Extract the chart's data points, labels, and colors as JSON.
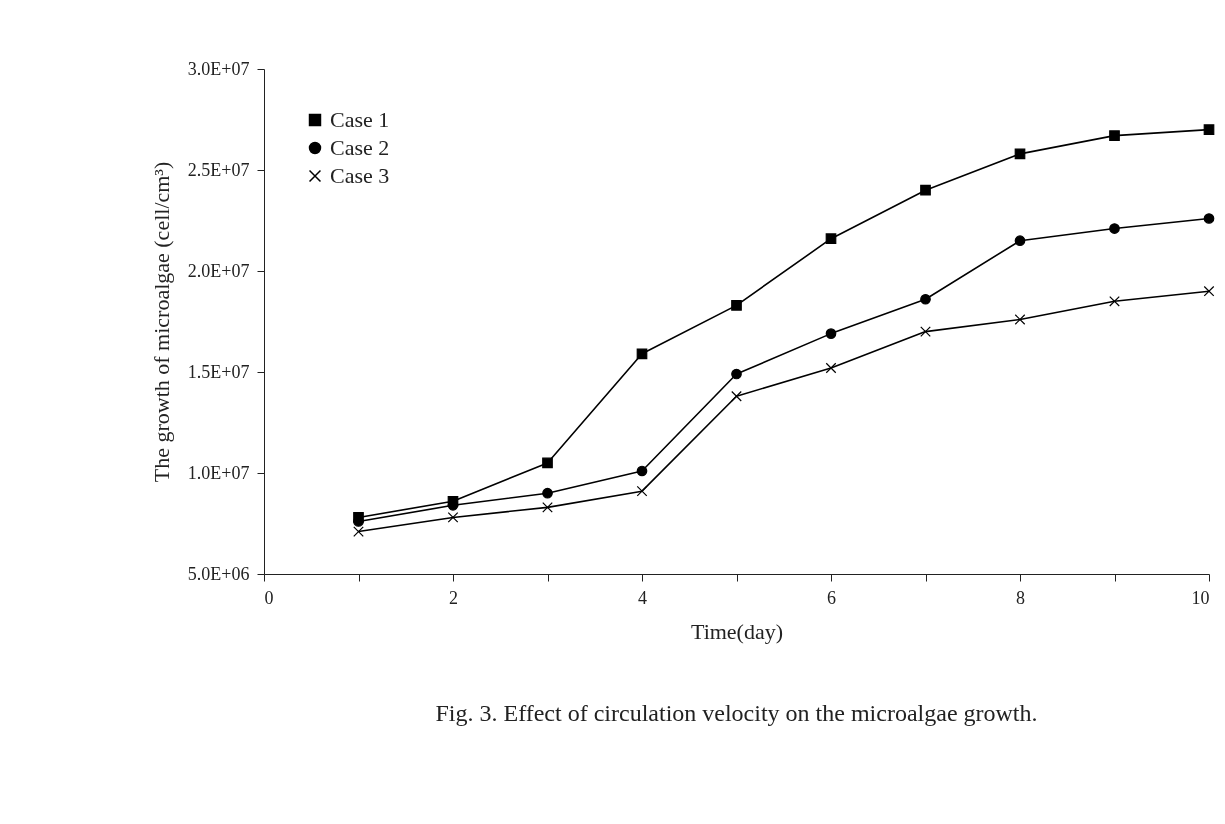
{
  "chart_data": {
    "type": "line",
    "xlabel": "Time(day)",
    "ylabel": "The growth of microalgae (cell/cm³)",
    "x": [
      1,
      2,
      3,
      4,
      5,
      6,
      7,
      8,
      9,
      10
    ],
    "series": [
      {
        "name": "Case 1",
        "color": "#000000",
        "marker": "square",
        "values": [
          7800000,
          8600000,
          10500000,
          15900000,
          18300000,
          21600000,
          24000000,
          25800000,
          26700000,
          27000000
        ]
      },
      {
        "name": "Case 2",
        "color": "#000000",
        "marker": "circle",
        "values": [
          7600000,
          8400000,
          9000000,
          10100000,
          14900000,
          16900000,
          18600000,
          21500000,
          22100000,
          22600000
        ]
      },
      {
        "name": "Case 3",
        "color": "#000000",
        "marker": "cross",
        "values": [
          7100000,
          7800000,
          8300000,
          9100000,
          13800000,
          15200000,
          17000000,
          17600000,
          18500000,
          19000000
        ]
      }
    ],
    "xlim": [
      0,
      10
    ],
    "xticks": [
      0,
      {
        "value": 1,
        "label": null
      },
      2,
      {
        "value": 3,
        "label": null
      },
      4,
      {
        "value": 5,
        "label": null
      },
      6,
      {
        "value": 7,
        "label": null
      },
      8,
      {
        "value": 9,
        "label": null
      },
      10
    ],
    "ylim": [
      5000000,
      30000000
    ],
    "yticks": [
      {
        "value": 5000000,
        "label": "5.0E+06"
      },
      {
        "value": 10000000,
        "label": "1.0E+07"
      },
      {
        "value": 15000000,
        "label": "1.5E+07"
      },
      {
        "value": 20000000,
        "label": "2.0E+07"
      },
      {
        "value": 25000000,
        "label": "2.5E+07"
      },
      {
        "value": 30000000,
        "label": "3.0E+07"
      }
    ],
    "grid": false,
    "legend": "top left",
    "annotations": [
      "Fig. 3. Effect of circulation velocity on the microalgae growth."
    ]
  }
}
